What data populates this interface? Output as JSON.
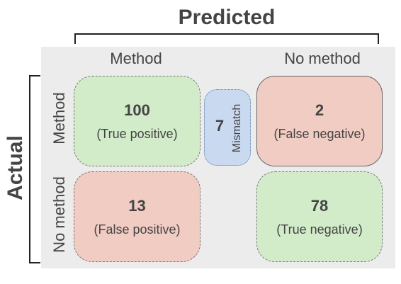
{
  "titles": {
    "predicted": "Predicted",
    "actual": "Actual"
  },
  "columns": {
    "method": "Method",
    "no_method": "No method"
  },
  "rows": {
    "method": "Method",
    "no_method": "No method"
  },
  "cells": {
    "true_positive": {
      "value": "100",
      "label": "(True positive)"
    },
    "false_negative": {
      "value": "2",
      "label": "(False negative)"
    },
    "false_positive": {
      "value": "13",
      "label": "(False positive)"
    },
    "true_negative": {
      "value": "78",
      "label": "(True negative)"
    },
    "mismatch": {
      "value": "7",
      "label": "Mismatch"
    }
  },
  "colors": {
    "correct": "#d2ecc9",
    "incorrect": "#f1ccc3",
    "mismatch": "#c9d9ef",
    "panel": "#ececec"
  }
}
